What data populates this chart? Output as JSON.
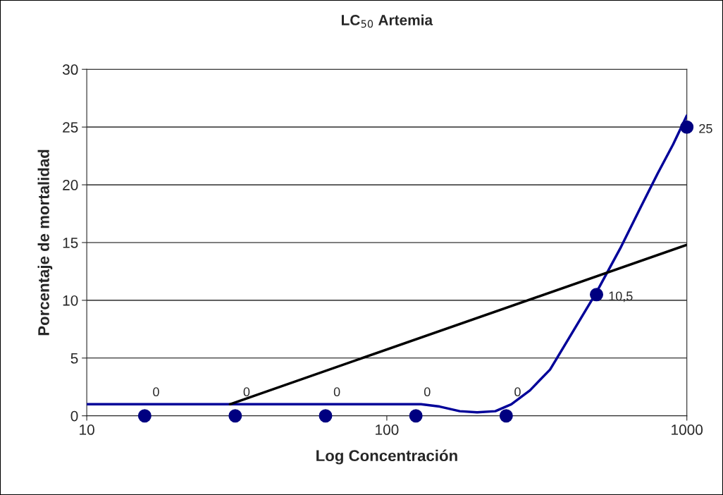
{
  "chart_data": {
    "type": "scatter",
    "title": "LC$_{50}$ Artemia",
    "xlabel": "Log Concentración",
    "ylabel": "Porcentaje de mortalidad",
    "log": "x",
    "xlim": [
      10,
      1000
    ],
    "xticks": [
      10,
      100,
      1000
    ],
    "ylim": [
      0,
      30
    ],
    "yticks": [
      0,
      5,
      10,
      15,
      20,
      25,
      30
    ],
    "grid": "y",
    "legend": false,
    "series": [
      {
        "color": "#000080",
        "marker": "circle",
        "x": [
          15.6,
          31.25,
          62.5,
          125,
          250,
          500,
          1000
        ],
        "values": [
          0,
          0,
          0,
          0,
          0,
          10.5,
          25
        ],
        "value_labels": [
          "0",
          "0",
          "0",
          "0",
          "0",
          "10,5",
          "25"
        ]
      },
      {
        "type": "line",
        "color": "#000099",
        "x": [
          10,
          130,
          150,
          175,
          200,
          230,
          260,
          300,
          350,
          400,
          500,
          600,
          700,
          800,
          900,
          1000
        ],
        "values": [
          1,
          1,
          0.8,
          0.4,
          0.3,
          0.4,
          1,
          2.2,
          4,
          6.5,
          10.7,
          14.5,
          18,
          21,
          23.5,
          26
        ]
      },
      {
        "type": "line",
        "color": "#000000",
        "x": [
          30,
          1000
        ],
        "values": [
          1,
          14.8
        ]
      }
    ]
  }
}
